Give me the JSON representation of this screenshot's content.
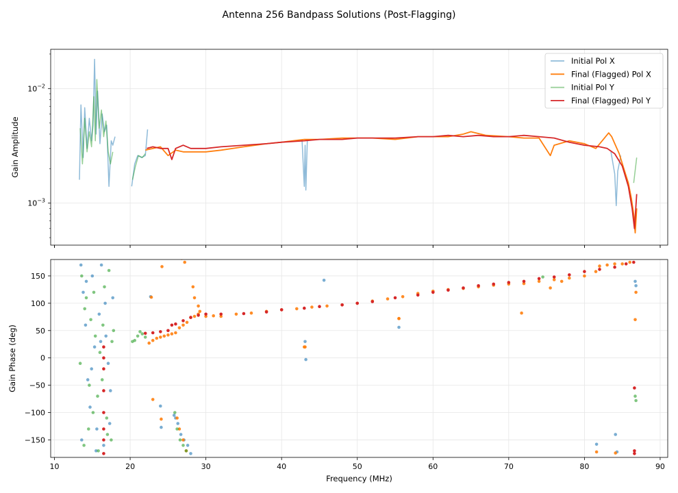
{
  "chart_data": {
    "type": "line",
    "title": "Antenna 256 Bandpass Solutions (Post-Flagging)",
    "xlabel": "Frequency (MHz)",
    "x_ticks": [
      "10",
      "20",
      "30",
      "40",
      "50",
      "60",
      "70",
      "80",
      "90"
    ],
    "xlim": [
      9.5,
      91
    ],
    "series_styles": [
      {
        "name": "Initial Pol X",
        "color": "#1f77b4",
        "alpha": 0.5
      },
      {
        "name": "Final (Flagged) Pol X",
        "color": "#ff7f0e",
        "alpha": 1.0
      },
      {
        "name": "Initial Pol Y",
        "color": "#2ca02c",
        "alpha": 0.5
      },
      {
        "name": "Final (Flagged) Pol Y",
        "color": "#d62728",
        "alpha": 1.0
      }
    ],
    "panels": [
      {
        "type": "line",
        "ylabel": "Gain Amplitude",
        "yscale": "log",
        "ylim": [
          0.00043,
          0.022
        ],
        "y_ticks": [
          {
            "value": 0.001,
            "mantissa": "10",
            "exponent": "−3"
          },
          {
            "value": 0.01,
            "mantissa": "10",
            "exponent": "−2"
          }
        ],
        "legend_position": "top-right",
        "series": [
          {
            "name": "Initial Pol X",
            "x": [
              13.3,
              13.5,
              13.8,
              14.0,
              14.3,
              14.6,
              14.9,
              15.1,
              15.3,
              15.5,
              15.7,
              16.0,
              16.3,
              16.6,
              16.9,
              17.2,
              17.5,
              17.7,
              18.0
            ],
            "y": [
              0.0016,
              0.0072,
              0.0025,
              0.0068,
              0.003,
              0.0055,
              0.0035,
              0.0048,
              0.018,
              0.004,
              0.0095,
              0.0033,
              0.006,
              0.0042,
              0.0048,
              0.0014,
              0.0035,
              0.0032,
              0.0038
            ]
          },
          {
            "name": "Initial Pol X",
            "x": [
              20.2,
              20.6,
              21.0,
              21.5,
              22.0,
              22.3
            ],
            "y": [
              0.0014,
              0.0022,
              0.0026,
              0.0025,
              0.0026,
              0.0044
            ]
          },
          {
            "name": "Initial Pol X",
            "x": [
              42.7,
              43.0,
              43.1,
              43.2,
              43.4
            ],
            "y": [
              0.0036,
              0.0014,
              0.0032,
              0.0013,
              0.0036
            ]
          },
          {
            "name": "Initial Pol X",
            "x": [
              83.5,
              84.0,
              84.2,
              84.4,
              84.8
            ],
            "y": [
              0.0028,
              0.0018,
              0.00095,
              0.0019,
              0.0026
            ]
          },
          {
            "name": "Final (Flagged) Pol X",
            "x": [
              22.0,
              24.0,
              25.0,
              26.0,
              27.0,
              28.0,
              30.0,
              32.0,
              35.0,
              38.0,
              40.0,
              43.0,
              45.0,
              48.0,
              50.0,
              52.0,
              55.0,
              58.0,
              60.0,
              62.0,
              64.0,
              65.0,
              67.0,
              70.0,
              72.0,
              74.0,
              75.5,
              76.0,
              78.0,
              80.0,
              81.5,
              82.5,
              83.2,
              83.6,
              84.1,
              84.6,
              85.2,
              85.8,
              86.2,
              86.5,
              86.7,
              86.9
            ],
            "y": [
              0.0029,
              0.0031,
              0.0026,
              0.0029,
              0.0028,
              0.0028,
              0.0028,
              0.0029,
              0.0031,
              0.0033,
              0.0034,
              0.0036,
              0.0036,
              0.0037,
              0.0037,
              0.0037,
              0.0036,
              0.0038,
              0.0038,
              0.0038,
              0.004,
              0.0042,
              0.0039,
              0.0038,
              0.0037,
              0.0037,
              0.0026,
              0.0032,
              0.0035,
              0.0033,
              0.003,
              0.0036,
              0.0041,
              0.0038,
              0.0032,
              0.0027,
              0.002,
              0.0015,
              0.0011,
              0.0008,
              0.00055,
              0.0009
            ]
          },
          {
            "name": "Initial Pol Y",
            "x": [
              13.4,
              13.7,
              14.0,
              14.3,
              14.6,
              14.9,
              15.2,
              15.4,
              15.6,
              15.9,
              16.2,
              16.5,
              16.8,
              17.1,
              17.4,
              17.7
            ],
            "y": [
              0.0045,
              0.0022,
              0.0055,
              0.0028,
              0.0042,
              0.0031,
              0.0085,
              0.0035,
              0.012,
              0.0045,
              0.0065,
              0.0038,
              0.0052,
              0.0028,
              0.0022,
              0.0028
            ]
          },
          {
            "name": "Initial Pol Y",
            "x": [
              20.3,
              20.7,
              21.1,
              21.6,
              22.0
            ],
            "y": [
              0.0016,
              0.0021,
              0.0026,
              0.0025,
              0.0027
            ]
          },
          {
            "name": "Initial Pol Y",
            "x": [
              86.5,
              86.9
            ],
            "y": [
              0.0015,
              0.0025
            ]
          },
          {
            "name": "Final (Flagged) Pol Y",
            "x": [
              22.2,
              23.0,
              24.0,
              25.0,
              25.5,
              26.0,
              27.0,
              28.0,
              30.0,
              32.0,
              35.0,
              38.0,
              40.0,
              43.0,
              45.0,
              48.0,
              50.0,
              52.0,
              55.0,
              58.0,
              60.0,
              62.0,
              64.0,
              66.0,
              68.0,
              70.0,
              72.0,
              74.0,
              76.0,
              78.0,
              80.0,
              82.0,
              83.0,
              84.0,
              85.0,
              85.8,
              86.3,
              86.6,
              86.9
            ],
            "y": [
              0.003,
              0.0031,
              0.003,
              0.003,
              0.0024,
              0.003,
              0.0032,
              0.003,
              0.003,
              0.0031,
              0.0032,
              0.0033,
              0.0034,
              0.0035,
              0.0036,
              0.0036,
              0.0037,
              0.0037,
              0.0037,
              0.0038,
              0.0038,
              0.0039,
              0.0038,
              0.0039,
              0.0038,
              0.0038,
              0.0039,
              0.0038,
              0.0037,
              0.0034,
              0.0032,
              0.0031,
              0.003,
              0.0027,
              0.0021,
              0.0014,
              0.0009,
              0.0006,
              0.0012
            ]
          }
        ]
      },
      {
        "type": "scatter",
        "ylabel": "Gain Phase (deg)",
        "ylim": [
          -182,
          180
        ],
        "y_ticks": [
          "150",
          "100",
          "50",
          "0",
          "−50",
          "−100",
          "−150"
        ],
        "series": [
          {
            "name": "Initial Pol X",
            "x": [
              13.5,
              13.8,
              14.1,
              14.4,
              14.7,
              15.0,
              15.3,
              15.6,
              15.9,
              16.2,
              16.5,
              16.8,
              17.1,
              17.4,
              17.7,
              13.6,
              14.2,
              14.9,
              15.5,
              16.1,
              16.7,
              17.3,
              22.7,
              24.0,
              24.1,
              25.8,
              26.0,
              26.3,
              26.7,
              27.1,
              27.6,
              28.0,
              43.1,
              43.2,
              45.6,
              55.5,
              81.6,
              84.1,
              84.3,
              86.7,
              86.8
            ],
            "y": [
              170,
              120,
              60,
              -40,
              -90,
              150,
              20,
              -130,
              80,
              170,
              -160,
              40,
              -10,
              -60,
              110,
              -150,
              140,
              -20,
              -170,
              30,
              100,
              -120,
              112,
              -88,
              -127,
              -105,
              -110,
              -120,
              -140,
              -150,
              -160,
              -175,
              30,
              -3,
              142,
              56,
              -158,
              -140,
              -172,
              140,
              132
            ],
            "alpha": 0.6
          },
          {
            "name": "Final (Flagged) Pol X",
            "x": [
              22.5,
              23.0,
              23.5,
              24.0,
              24.5,
              25.0,
              25.5,
              26.0,
              26.5,
              27.0,
              27.5,
              28.0,
              28.5,
              29.0,
              30.0,
              31.0,
              32.0,
              34.0,
              36.0,
              38.0,
              40.0,
              42.0,
              43.0,
              44.0,
              46.0,
              48.0,
              50.0,
              52.0,
              54.0,
              55.5,
              56.0,
              58.0,
              60.0,
              62.0,
              64.0,
              66.0,
              68.0,
              70.0,
              71.7,
              72.0,
              74.0,
              75.5,
              76.0,
              77.0,
              78.0,
              80.0,
              81.5,
              82.0,
              83.0,
              84.0,
              85.0,
              86.0,
              86.7,
              86.8,
              22.8,
              24.2,
              23.0,
              24.1,
              26.8,
              27.2,
              28.3,
              28.5,
              29.0,
              29.2,
              26.2,
              26.5,
              27.0,
              27.4,
              43.1,
              55.5,
              81.6,
              84.1
            ],
            "y": [
              27,
              32,
              36,
              38,
              40,
              42,
              44,
              46,
              55,
              60,
              65,
              74,
              76,
              80,
              76,
              77,
              76,
              80,
              82,
              85,
              88,
              90,
              20,
              93,
              95,
              97,
              100,
              104,
              108,
              72,
              112,
              118,
              122,
              125,
              127,
              130,
              133,
              135,
              82,
              136,
              140,
              128,
              143,
              140,
              146,
              150,
              158,
              168,
              170,
              172,
              172,
              175,
              70,
              120,
              111,
              167,
              -76,
              -112,
              182,
              175,
              130,
              110,
              95,
              85,
              -110,
              -130,
              -150,
              -170,
              20,
              72,
              -172,
              -174
            ],
            "alpha": 0.9
          },
          {
            "name": "Initial Pol Y",
            "x": [
              13.6,
              13.9,
              14.2,
              14.5,
              14.8,
              15.1,
              15.4,
              15.7,
              16.0,
              16.3,
              16.6,
              16.9,
              17.2,
              17.5,
              17.8,
              13.4,
              14.0,
              14.6,
              15.2,
              15.8,
              16.4,
              17.0,
              17.6,
              20.3,
              20.6,
              21.0,
              21.3,
              21.6,
              22.0,
              25.9,
              26.2,
              26.6,
              27.0,
              27.4,
              74.5,
              86.7,
              86.8
            ],
            "y": [
              150,
              -160,
              110,
              -130,
              70,
              -100,
              40,
              -70,
              10,
              -40,
              130,
              -110,
              160,
              -150,
              50,
              -10,
              90,
              -50,
              120,
              -170,
              60,
              -140,
              30,
              30,
              32,
              40,
              48,
              44,
              38,
              -100,
              -130,
              -150,
              -160,
              -170,
              148,
              -70,
              -78
            ],
            "alpha": 0.6
          },
          {
            "name": "Final (Flagged) Pol Y",
            "x": [
              16.5,
              16.5,
              16.5,
              16.5,
              16.5,
              16.5,
              16.5,
              16.5,
              22.0,
              23.0,
              24.0,
              25.0,
              25.5,
              26.0,
              27.0,
              28.0,
              29.0,
              30.0,
              32.0,
              35.0,
              38.0,
              40.0,
              43.0,
              45.0,
              48.0,
              50.0,
              52.0,
              55.0,
              58.0,
              60.0,
              62.0,
              64.0,
              66.0,
              68.0,
              70.0,
              72.0,
              74.0,
              76.0,
              78.0,
              80.0,
              82.0,
              84.0,
              85.5,
              86.5,
              86.6,
              86.6,
              86.6
            ],
            "y": [
              20,
              0,
              -20,
              -60,
              -100,
              -130,
              -150,
              -175,
              45,
              46,
              48,
              50,
              60,
              62,
              68,
              74,
              78,
              80,
              80,
              81,
              84,
              88,
              91,
              94,
              97,
              100,
              103,
              110,
              115,
              120,
              124,
              128,
              132,
              135,
              138,
              140,
              145,
              148,
              152,
              158,
              162,
              166,
              172,
              175,
              -55,
              -170,
              -175
            ],
            "alpha": 1.0
          }
        ]
      }
    ]
  }
}
